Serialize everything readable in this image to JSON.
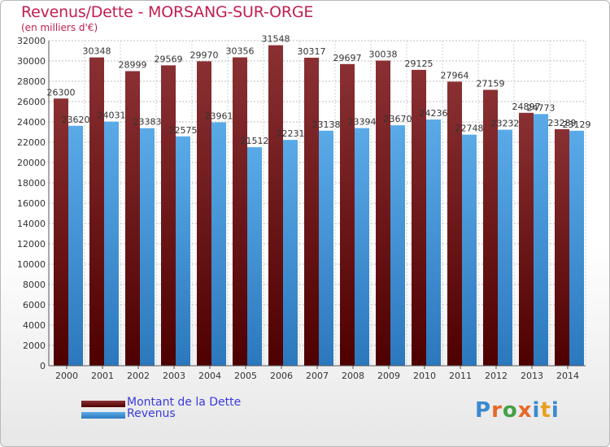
{
  "title": "Revenus/Dette - MORSANG-SUR-ORGE",
  "subtitle": "(en milliers d'€)",
  "colors": {
    "debt_top": "#8a3033",
    "debt_bottom": "#4e0000",
    "revenue_top": "#5aaae8",
    "revenue_bottom": "#2b78bd",
    "title": "#c21e4e",
    "legend_text": "#3a3adf"
  },
  "legend": {
    "debt_label": "Montant de la Dette",
    "revenue_label": "Revenus"
  },
  "logo": {
    "text": "Proxiti",
    "letter_colors": [
      "#3a8ad0",
      "#e8682a",
      "#43a047",
      "#e8682a",
      "#3a8ad0",
      "#e8a020",
      "#3a8ad0"
    ]
  },
  "chart_data": {
    "type": "bar",
    "categories": [
      "2000",
      "2001",
      "2002",
      "2003",
      "2004",
      "2005",
      "2006",
      "2007",
      "2008",
      "2009",
      "2010",
      "2011",
      "2012",
      "2013",
      "2014"
    ],
    "series": [
      {
        "name": "Montant de la Dette",
        "values": [
          26300,
          30348,
          28999,
          29569,
          29970,
          30356,
          31548,
          30317,
          29697,
          30038,
          29125,
          27964,
          27159,
          24897,
          23289
        ]
      },
      {
        "name": "Revenus",
        "values": [
          23620,
          24031,
          23383,
          22575,
          23961,
          21512,
          22231,
          23138,
          23394,
          23670,
          24236,
          22748,
          23232,
          24773,
          23129
        ]
      }
    ],
    "ylim": [
      0,
      32000
    ],
    "ytick_step": 2000,
    "grid": true,
    "xlabel": "",
    "ylabel": ""
  }
}
